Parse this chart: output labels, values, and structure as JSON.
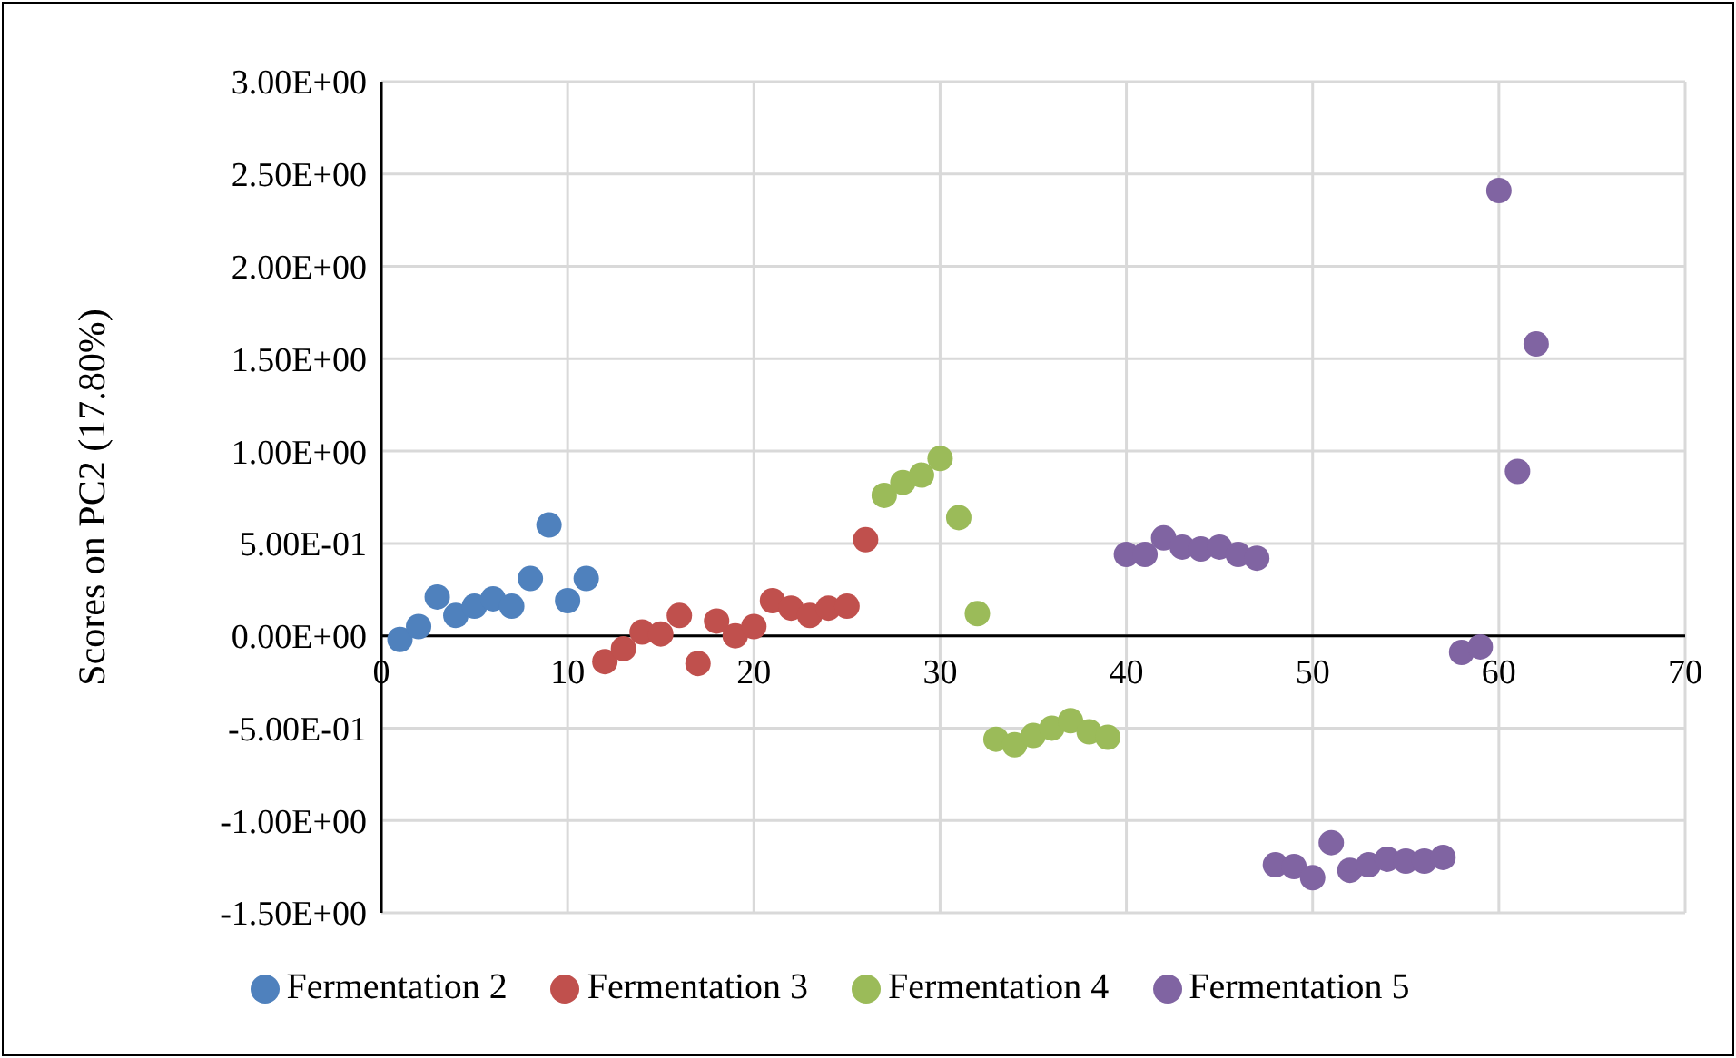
{
  "chart_data": {
    "type": "scatter",
    "ylabel": "Scores on PC2 (17.80%)",
    "xlim": [
      0,
      70
    ],
    "xticks": [
      0,
      10,
      20,
      30,
      40,
      50,
      60,
      70
    ],
    "ylim": [
      -1.5,
      3
    ],
    "yticks": [
      {
        "value": -1.5,
        "label": "-1.50E+00"
      },
      {
        "value": -1,
        "label": "-1.00E+00"
      },
      {
        "value": -0.5,
        "label": "-5.00E-01"
      },
      {
        "value": 0,
        "label": "0.00E+00"
      },
      {
        "value": 0.5,
        "label": "5.00E-01"
      },
      {
        "value": 1,
        "label": "1.00E+00"
      },
      {
        "value": 1.5,
        "label": "1.50E+00"
      },
      {
        "value": 2,
        "label": "2.00E+00"
      },
      {
        "value": 2.5,
        "label": "2.50E+00"
      },
      {
        "value": 3,
        "label": "3.00E+00"
      }
    ],
    "grid": true,
    "legend": "bottom",
    "marker": "circle",
    "series": [
      {
        "name": "Fermentation 2",
        "color": "#4f81bd",
        "x": [
          1,
          2,
          3,
          4,
          5,
          6,
          7,
          8,
          9,
          10,
          11
        ],
        "values": [
          -0.02,
          0.05,
          0.21,
          0.11,
          0.16,
          0.2,
          0.16,
          0.31,
          0.6,
          0.19,
          0.31
        ]
      },
      {
        "name": "Fermentation 3",
        "color": "#c0504d",
        "x": [
          12,
          13,
          14,
          15,
          16,
          17,
          18,
          19,
          20,
          21,
          22,
          23,
          24,
          25,
          26
        ],
        "values": [
          -0.14,
          -0.07,
          0.02,
          0.01,
          0.11,
          -0.15,
          0.08,
          0,
          0.05,
          0.19,
          0.15,
          0.11,
          0.15,
          0.16,
          0.52
        ]
      },
      {
        "name": "Fermentation 4",
        "color": "#9bbb59",
        "x": [
          27,
          28,
          29,
          30,
          31,
          32,
          33,
          34,
          35,
          36,
          37,
          38,
          39
        ],
        "values": [
          0.76,
          0.83,
          0.87,
          0.96,
          0.64,
          0.12,
          -0.56,
          -0.59,
          -0.54,
          -0.5,
          -0.46,
          -0.52,
          -0.55
        ]
      },
      {
        "name": "Fermentation 5",
        "color": "#8064a2",
        "x": [
          40,
          41,
          42,
          43,
          44,
          45,
          46,
          47,
          48,
          49,
          50,
          51,
          52,
          53,
          54,
          55,
          56,
          57,
          58,
          59,
          60,
          61,
          62
        ],
        "values": [
          0.44,
          0.44,
          0.53,
          0.48,
          0.47,
          0.48,
          0.44,
          0.42,
          -1.24,
          -1.25,
          -1.31,
          -1.12,
          -1.27,
          -1.24,
          -1.21,
          -1.22,
          -1.22,
          -1.2,
          -0.09,
          -0.06,
          2.41,
          0.89,
          1.58
        ]
      }
    ]
  }
}
